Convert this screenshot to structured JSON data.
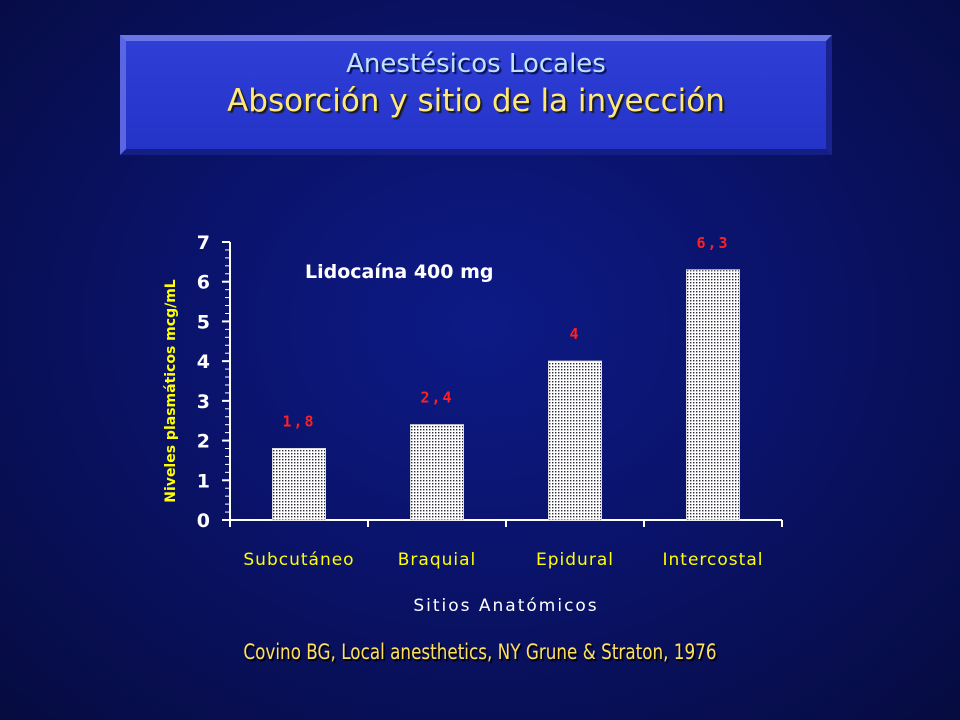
{
  "slide": {
    "title": "Anestésicos Locales",
    "subtitle": "Absorción y sitio de la inyección",
    "citation": "Covino BG, Local anesthetics, NY Grune & Straton, 1976"
  },
  "colors": {
    "background": "#0a136a",
    "title_box": "#2a39cf",
    "axis": "#ffffff",
    "value_label": "#ff2020",
    "axis_title": "#ffff00",
    "bar_fill": "#ffffff",
    "bar_dots": "#2a2a3a"
  },
  "chart_data": {
    "type": "bar",
    "annotation": "Lidocaína 400 mg",
    "categories": [
      "Subcutáneo",
      "Braquial",
      "Epidural",
      "Intercostal"
    ],
    "values": [
      1.8,
      2.4,
      4,
      6.3
    ],
    "value_labels": [
      "1,8",
      "2,4",
      "4",
      "6,3"
    ],
    "xlabel": "Sitios Anatómicos",
    "ylabel": "Niveles plasmáticos mcg/mL",
    "ylim": [
      0,
      7
    ],
    "yticks": [
      "0",
      "1",
      "2",
      "3",
      "4",
      "5",
      "6",
      "7"
    ],
    "grid": false,
    "legend": "none"
  }
}
